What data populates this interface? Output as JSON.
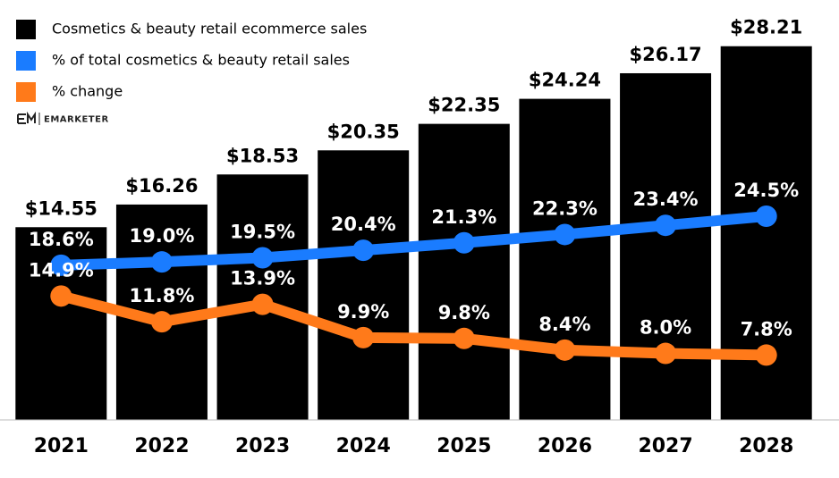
{
  "chart_data": {
    "type": "bar",
    "brand": "EMARKETER",
    "categories": [
      "2021",
      "2022",
      "2023",
      "2024",
      "2025",
      "2026",
      "2027",
      "2028"
    ],
    "series": [
      {
        "name": "Cosmetics & beauty retail ecommerce sales",
        "type": "bar",
        "color": "#000000",
        "values": [
          14.55,
          16.26,
          18.53,
          20.35,
          22.35,
          24.24,
          26.17,
          28.21
        ],
        "value_labels": [
          "$14.55",
          "$16.26",
          "$18.53",
          "$20.35",
          "$22.35",
          "$24.24",
          "$26.17",
          "$28.21"
        ]
      },
      {
        "name": "% of total cosmetics & beauty retail sales",
        "type": "line",
        "axis": "y2",
        "color": "#1a7cff",
        "values": [
          18.6,
          19.0,
          19.5,
          20.4,
          21.3,
          22.3,
          23.4,
          24.5
        ],
        "value_labels": [
          "18.6%",
          "19.0%",
          "19.5%",
          "20.4%",
          "21.3%",
          "22.3%",
          "23.4%",
          "24.5%"
        ]
      },
      {
        "name": "% change",
        "type": "line",
        "axis": "y2",
        "color": "#ff7a1a",
        "values": [
          14.9,
          11.8,
          13.9,
          9.9,
          9.8,
          8.4,
          8.0,
          7.8
        ],
        "value_labels": [
          "14.9%",
          "11.8%",
          "13.9%",
          "9.9%",
          "9.8%",
          "8.4%",
          "8.0%",
          "7.8%"
        ]
      }
    ],
    "ylim": [
      0,
      31.7
    ],
    "y2lim": [
      0,
      50.5
    ],
    "legend": "top-left"
  }
}
